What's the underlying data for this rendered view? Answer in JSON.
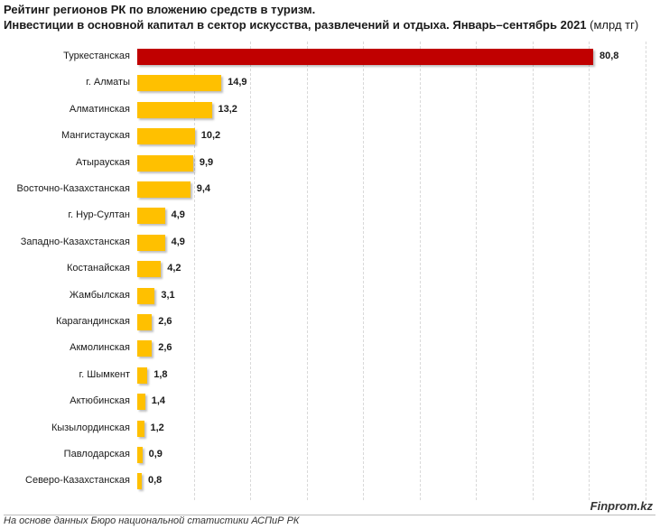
{
  "header": {
    "title": "Рейтинг регионов РК по вложению средств в туризм.",
    "subtitle_main": "Инвестиции в основной капитал в сектор искусства, развлечений и отдыха. Январь–сентябрь 2021",
    "subtitle_unit": "(млрд тг)"
  },
  "chart_data": {
    "type": "bar",
    "orientation": "horizontal",
    "title": "Рейтинг регионов РК по вложению средств в туризм.",
    "subtitle": "Инвестиции в основной капитал в сектор искусства, развлечений и отдыха. Январь–сентябрь 2021 (млрд тг)",
    "categories": [
      "Туркестанская",
      "г. Алматы",
      "Алматинская",
      "Мангистауская",
      "Атырауская",
      "Восточно-Казахстанская",
      "г. Нур-Султан",
      "Западно-Казахстанская",
      "Костанайская",
      "Жамбылская",
      "Карагандинская",
      "Акмолинская",
      "г. Шымкент",
      "Актюбинская",
      "Кызылординская",
      "Павлодарская",
      "Северо-Казахстанская"
    ],
    "values": [
      80.8,
      14.9,
      13.2,
      10.2,
      9.9,
      9.4,
      4.9,
      4.9,
      4.2,
      3.1,
      2.6,
      2.6,
      1.8,
      1.4,
      1.2,
      0.9,
      0.8
    ],
    "value_labels": [
      "80,8",
      "14,9",
      "13,2",
      "10,2",
      "9,9",
      "9,4",
      "4,9",
      "4,9",
      "4,2",
      "3,1",
      "2,6",
      "2,6",
      "1,8",
      "1,4",
      "1,2",
      "0,9",
      "0,8"
    ],
    "xlim": [
      0,
      90
    ],
    "grid": true,
    "colors": {
      "highlight": "#c00000",
      "default": "#ffc000"
    }
  },
  "footer": {
    "source": "На основе данных Бюро национальной статистики АСПиР РК",
    "brand": "Finprom.kz"
  }
}
